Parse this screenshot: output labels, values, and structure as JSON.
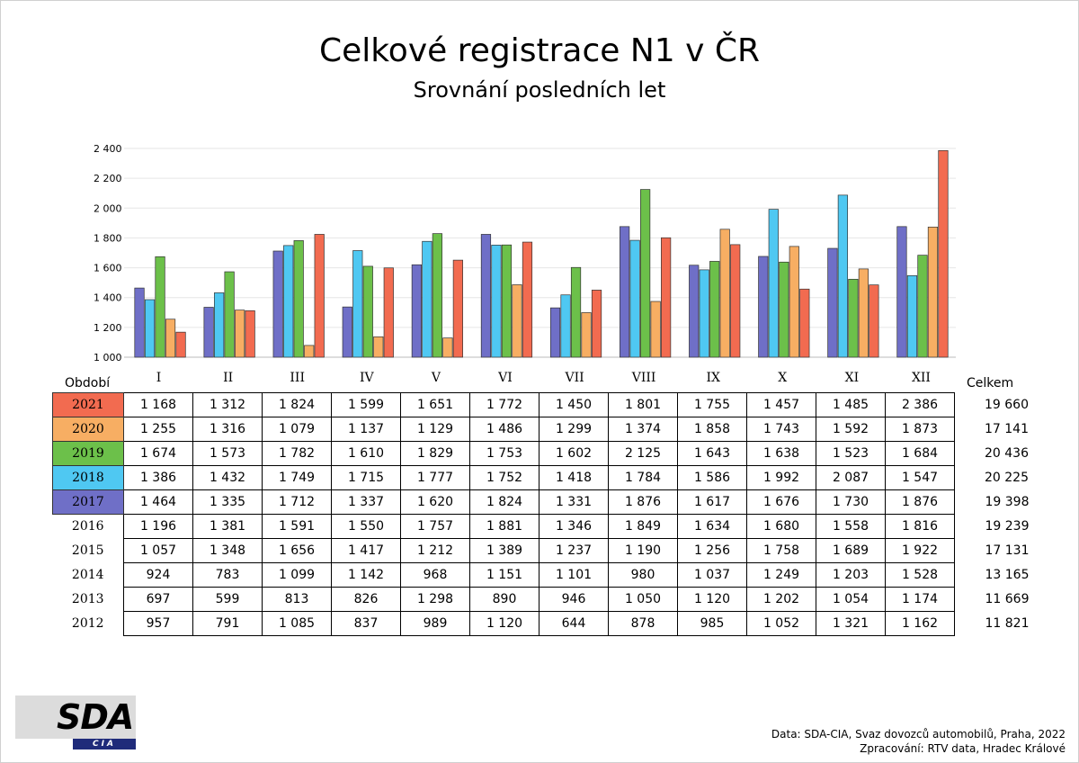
{
  "title": "Celkové registrace N1 v ČR",
  "subtitle": "Srovnání posledních let",
  "table": {
    "period_label": "Období",
    "total_label": "Celkem",
    "rows": [
      {
        "year": "2021",
        "values": [
          "1 168",
          "1 312",
          "1 824",
          "1 599",
          "1 651",
          "1 772",
          "1 450",
          "1 801",
          "1 755",
          "1 457",
          "1 485",
          "2 386"
        ],
        "total": "19 660",
        "color": "#f26b50"
      },
      {
        "year": "2020",
        "values": [
          "1 255",
          "1 316",
          "1 079",
          "1 137",
          "1 129",
          "1 486",
          "1 299",
          "1 374",
          "1 858",
          "1 743",
          "1 592",
          "1 873"
        ],
        "total": "17 141",
        "color": "#f7ae63"
      },
      {
        "year": "2019",
        "values": [
          "1 674",
          "1 573",
          "1 782",
          "1 610",
          "1 829",
          "1 753",
          "1 602",
          "2 125",
          "1 643",
          "1 638",
          "1 523",
          "1 684"
        ],
        "total": "20 436",
        "color": "#6cc04a"
      },
      {
        "year": "2018",
        "values": [
          "1 386",
          "1 432",
          "1 749",
          "1 715",
          "1 777",
          "1 752",
          "1 418",
          "1 784",
          "1 586",
          "1 992",
          "2 087",
          "1 547"
        ],
        "total": "20 225",
        "color": "#4fc8f2"
      },
      {
        "year": "2017",
        "values": [
          "1 464",
          "1 335",
          "1 712",
          "1 337",
          "1 620",
          "1 824",
          "1 331",
          "1 876",
          "1 617",
          "1 676",
          "1 730",
          "1 876"
        ],
        "total": "19 398",
        "color": "#6f6fc7"
      },
      {
        "year": "2016",
        "values": [
          "1 196",
          "1 381",
          "1 591",
          "1 550",
          "1 757",
          "1 881",
          "1 346",
          "1 849",
          "1 634",
          "1 680",
          "1 558",
          "1 816"
        ],
        "total": "19 239"
      },
      {
        "year": "2015",
        "values": [
          "1 057",
          "1 348",
          "1 656",
          "1 417",
          "1 212",
          "1 389",
          "1 237",
          "1 190",
          "1 256",
          "1 758",
          "1 689",
          "1 922"
        ],
        "total": "17 131"
      },
      {
        "year": "2014",
        "values": [
          "924",
          "783",
          "1 099",
          "1 142",
          "968",
          "1 151",
          "1 101",
          "980",
          "1 037",
          "1 249",
          "1 203",
          "1 528"
        ],
        "total": "13 165"
      },
      {
        "year": "2013",
        "values": [
          "697",
          "599",
          "813",
          "826",
          "1 298",
          "890",
          "946",
          "1 050",
          "1 120",
          "1 202",
          "1 054",
          "1 174"
        ],
        "total": "11 669"
      },
      {
        "year": "2012",
        "values": [
          "957",
          "791",
          "1 085",
          "837",
          "989",
          "1 120",
          "644",
          "878",
          "985",
          "1 052",
          "1 321",
          "1 162"
        ],
        "total": "11 821"
      }
    ]
  },
  "chart_data": {
    "type": "bar",
    "categories": [
      "I",
      "II",
      "III",
      "IV",
      "V",
      "VI",
      "VII",
      "VIII",
      "IX",
      "X",
      "XI",
      "XII"
    ],
    "ylim": [
      1000,
      2400
    ],
    "yticks": [
      "1 000",
      "1 200",
      "1 400",
      "1 600",
      "1 800",
      "2 000",
      "2 200",
      "2 400"
    ],
    "series": [
      {
        "name": "2017",
        "color": "#6f6fc7",
        "values": [
          1464,
          1335,
          1712,
          1337,
          1620,
          1824,
          1331,
          1876,
          1617,
          1676,
          1730,
          1876
        ]
      },
      {
        "name": "2018",
        "color": "#4fc8f2",
        "values": [
          1386,
          1432,
          1749,
          1715,
          1777,
          1752,
          1418,
          1784,
          1586,
          1992,
          2087,
          1547
        ]
      },
      {
        "name": "2019",
        "color": "#6cc04a",
        "values": [
          1674,
          1573,
          1782,
          1610,
          1829,
          1753,
          1602,
          2125,
          1643,
          1638,
          1523,
          1684
        ]
      },
      {
        "name": "2020",
        "color": "#f7ae63",
        "values": [
          1255,
          1316,
          1079,
          1137,
          1129,
          1486,
          1299,
          1374,
          1858,
          1743,
          1592,
          1873
        ]
      },
      {
        "name": "2021",
        "color": "#f26b50",
        "values": [
          1168,
          1312,
          1824,
          1599,
          1651,
          1772,
          1450,
          1801,
          1755,
          1457,
          1485,
          2386
        ]
      }
    ]
  },
  "logo": {
    "text": "SDA",
    "sub": "CIA"
  },
  "source": {
    "line1": "Data: SDA-CIA, Svaz dovozců automobilů, Praha, 2022",
    "line2": "Zpracování: RTV data, Hradec Králové"
  }
}
